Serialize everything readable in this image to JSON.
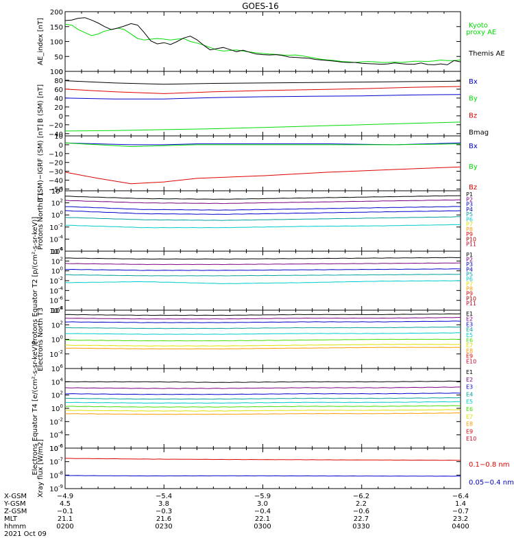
{
  "title": "GOES-16",
  "colors": {
    "black": "#000000",
    "green": "#00dd00",
    "red": "#dd0000",
    "blue": "#0000cc",
    "navy": "#00008b",
    "purple": "#7a0080",
    "cyan": "#00cccc",
    "teal": "#00a0a0",
    "lime": "#44dd00",
    "yellow": "#e0e000",
    "orange": "#ff9900",
    "darkred": "#b00000",
    "crimson": "#cc0022"
  },
  "chart_data": [
    {
      "type": "line",
      "ylabel": "AE_index [nT]",
      "ylim": [
        0,
        200
      ],
      "yticks": [
        "200",
        "150",
        "100",
        "50",
        "0"
      ],
      "legend": [
        "Kyoto proxy AE",
        "Themis AE"
      ],
      "series": [
        {
          "name": "Kyoto proxy AE",
          "color": "#00dd00",
          "x": [
            0,
            2,
            4,
            6,
            8,
            10,
            12,
            14,
            16,
            18,
            20,
            22,
            24,
            26,
            28,
            30,
            32,
            34,
            36,
            38,
            40,
            42,
            44,
            46,
            48,
            50,
            52,
            54,
            56,
            58,
            60,
            62,
            64,
            66,
            68,
            70,
            72,
            74,
            76,
            78,
            80,
            82,
            84,
            86,
            88,
            90,
            92,
            94,
            96,
            98,
            100,
            102,
            104,
            106,
            108,
            110,
            112,
            114,
            116,
            118,
            120
          ],
          "y": [
            158,
            155,
            140,
            130,
            120,
            125,
            135,
            140,
            145,
            140,
            125,
            110,
            105,
            108,
            110,
            108,
            105,
            108,
            110,
            100,
            95,
            88,
            80,
            72,
            68,
            70,
            72,
            68,
            65,
            62,
            60,
            58,
            57,
            55,
            54,
            55,
            52,
            48,
            44,
            40,
            38,
            36,
            33,
            32,
            30,
            32,
            33,
            32,
            30,
            30,
            31,
            30,
            32,
            34,
            34,
            33,
            35,
            38,
            36,
            36,
            38
          ]
        },
        {
          "name": "Themis AE",
          "color": "#000000",
          "x": [
            0,
            2,
            4,
            6,
            8,
            10,
            12,
            14,
            16,
            18,
            20,
            22,
            24,
            26,
            28,
            30,
            32,
            34,
            36,
            38,
            40,
            42,
            44,
            46,
            48,
            50,
            52,
            54,
            56,
            58,
            60,
            62,
            64,
            66,
            68,
            70,
            72,
            74,
            76,
            78,
            80,
            82,
            84,
            86,
            88,
            90,
            92,
            94,
            96,
            98,
            100,
            102,
            104,
            106,
            108,
            110,
            112,
            114,
            116,
            118,
            120
          ],
          "y": [
            170,
            172,
            178,
            180,
            172,
            162,
            150,
            140,
            145,
            152,
            160,
            155,
            130,
            102,
            92,
            96,
            90,
            100,
            112,
            118,
            106,
            88,
            72,
            76,
            80,
            73,
            66,
            71,
            64,
            58,
            56,
            55,
            56,
            53,
            48,
            47,
            45,
            44,
            40,
            38,
            36,
            34,
            31,
            30,
            30,
            27,
            26,
            25,
            24,
            25,
            28,
            26,
            24,
            24,
            28,
            23,
            22,
            25,
            22,
            36,
            32
          ]
        }
      ]
    },
    {
      "type": "line",
      "ylabel": "B (SM) [nT]",
      "ylim": [
        -45,
        100
      ],
      "yticks": [
        "100",
        "80",
        "60",
        "40",
        "20",
        "0",
        "−20",
        "−40"
      ],
      "legend": [
        "Bx",
        "By",
        "Bz",
        "Bmag"
      ],
      "series": [
        {
          "name": "Bmag",
          "color": "#000000",
          "x": [
            0,
            15,
            30,
            45,
            60,
            75,
            90,
            105,
            120
          ],
          "y": [
            79,
            74,
            71,
            73,
            74,
            75,
            76,
            77,
            78
          ]
        },
        {
          "name": "Bz",
          "color": "#dd0000",
          "x": [
            0,
            15,
            30,
            45,
            60,
            75,
            90,
            105,
            120
          ],
          "y": [
            60,
            54,
            50,
            54,
            57,
            59,
            61,
            64,
            66
          ]
        },
        {
          "name": "Bx",
          "color": "#0000cc",
          "x": [
            0,
            15,
            30,
            45,
            60,
            75,
            90,
            105,
            120
          ],
          "y": [
            40,
            38,
            38,
            41,
            43,
            44,
            45,
            47,
            48
          ]
        },
        {
          "name": "By",
          "color": "#00dd00",
          "x": [
            0,
            15,
            30,
            45,
            60,
            75,
            90,
            105,
            120
          ],
          "y": [
            -34,
            -33,
            -31,
            -29,
            -26,
            -23,
            -20,
            -17,
            -14
          ]
        }
      ]
    },
    {
      "type": "line",
      "ylabel": "B (SM)−IGRF (SM) [nT]",
      "ylim": [
        -52,
        10
      ],
      "yticks": [
        "10",
        "0",
        "−10",
        "−20",
        "−30",
        "−40",
        "−50"
      ],
      "legend": [
        "Bx",
        "By",
        "Bz"
      ],
      "series": [
        {
          "name": "Bx",
          "color": "#0000cc",
          "x": [
            0,
            10,
            20,
            30,
            40,
            60,
            80,
            100,
            120
          ],
          "y": [
            2,
            1,
            0,
            0,
            1,
            1,
            1,
            0,
            2
          ]
        },
        {
          "name": "By",
          "color": "#00dd00",
          "x": [
            0,
            10,
            20,
            30,
            40,
            60,
            80,
            100,
            120
          ],
          "y": [
            2,
            0,
            -2,
            -1,
            0,
            0,
            0,
            0,
            1
          ]
        },
        {
          "name": "Bz",
          "color": "#dd0000",
          "x": [
            0,
            10,
            20,
            30,
            40,
            60,
            80,
            100,
            120
          ],
          "y": [
            -31,
            -38,
            -44,
            -42,
            -38,
            -35,
            -31,
            -28,
            -25
          ]
        }
      ]
    },
    {
      "type": "line",
      "log": true,
      "ylabel": "Protons North T1",
      "ylim": [
        -6,
        4
      ],
      "yticks": [
        "10^4",
        "10^2",
        "10^0",
        "10^-2",
        "10^-4",
        "10^-6"
      ],
      "legend": [
        "P1",
        "P2",
        "P3",
        "P4",
        "P5",
        "P6",
        "P7",
        "P8",
        "P9",
        "P10",
        "P11"
      ],
      "series": [
        {
          "name": "P1",
          "color": "#000000",
          "levels": [
            3.1,
            2.7,
            2.6,
            2.8,
            3.0,
            3.2
          ]
        },
        {
          "name": "P2",
          "color": "#7a0080",
          "levels": [
            2.4,
            2.0,
            1.9,
            2.1,
            2.3,
            2.5
          ]
        },
        {
          "name": "P3",
          "color": "#0000cc",
          "levels": [
            1.4,
            0.9,
            0.8,
            1.0,
            1.2,
            1.4
          ]
        },
        {
          "name": "P4",
          "color": "#0000cc",
          "levels": [
            0.7,
            0.2,
            0.1,
            0.3,
            0.5,
            0.7
          ]
        },
        {
          "name": "P5",
          "color": "#00a0a0",
          "levels": [
            -0.4,
            -0.8,
            -0.9,
            -0.7,
            -0.5,
            -0.3
          ]
        },
        {
          "name": "P6",
          "color": "#00cccc",
          "levels": [
            -1.7,
            -2.1,
            -2.1,
            -1.9,
            -1.8,
            -1.6
          ]
        }
      ]
    },
    {
      "type": "line",
      "log": true,
      "ylabel": "Protons Equator T2 [p/(cm²-s-sr-keV)]",
      "ylim": [
        -8,
        4
      ],
      "yticks": [
        "10^4",
        "10^2",
        "10^0",
        "10^-2",
        "10^-4",
        "10^-6",
        "10^-8"
      ],
      "legend": [
        "P1",
        "P2",
        "P3",
        "P4",
        "P5",
        "P6",
        "P7",
        "P8",
        "P9",
        "P10",
        "P11"
      ],
      "series": [
        {
          "name": "P1",
          "color": "#000000",
          "levels": [
            2.6,
            2.4,
            2.4,
            2.5,
            2.6,
            2.7
          ]
        },
        {
          "name": "P2",
          "color": "#7a0080",
          "levels": [
            1.5,
            1.3,
            1.3,
            1.4,
            1.5,
            1.6
          ]
        },
        {
          "name": "P3",
          "color": "#0000cc",
          "levels": [
            0.3,
            0.1,
            0.1,
            0.2,
            0.3,
            0.4
          ]
        },
        {
          "name": "P4",
          "color": "#00a0a0",
          "levels": [
            -0.8,
            -1.0,
            -1.0,
            -0.9,
            -0.8,
            -0.7
          ]
        },
        {
          "name": "P5",
          "color": "#00cccc",
          "levels": [
            -2.4,
            -2.2,
            -2.6,
            -2.4,
            -2.1,
            -2.0
          ]
        }
      ]
    },
    {
      "type": "line",
      "log": true,
      "ylabel": "Electrons North T3",
      "ylim": [
        -4,
        4
      ],
      "yticks": [
        "10^4",
        "10^2",
        "10^0",
        "10^-2"
      ],
      "legend": [
        "E1",
        "E2",
        "E3",
        "E4",
        "E5",
        "E6",
        "E7",
        "E8",
        "E9",
        "E10"
      ],
      "series": [
        {
          "name": "E1",
          "color": "#000000",
          "levels": [
            3.4,
            3.3,
            3.3,
            3.4,
            3.4,
            3.5
          ]
        },
        {
          "name": "E2",
          "color": "#7a0080",
          "levels": [
            2.9,
            2.8,
            2.8,
            2.9,
            2.9,
            3.0
          ]
        },
        {
          "name": "E3",
          "color": "#0000cc",
          "levels": [
            2.4,
            2.3,
            2.3,
            2.4,
            2.4,
            2.5
          ]
        },
        {
          "name": "E4",
          "color": "#00a0a0",
          "levels": [
            1.6,
            1.5,
            1.5,
            1.6,
            1.6,
            1.7
          ]
        },
        {
          "name": "E5",
          "color": "#00cccc",
          "levels": [
            0.8,
            0.7,
            0.7,
            0.8,
            0.8,
            0.9
          ]
        },
        {
          "name": "E6",
          "color": "#44dd00",
          "levels": [
            -0.1,
            -0.2,
            -0.2,
            -0.1,
            0.0,
            0.0
          ]
        },
        {
          "name": "E7",
          "color": "#e0e000",
          "levels": [
            -0.8,
            -0.9,
            -0.9,
            -0.8,
            -0.7,
            -0.7
          ]
        },
        {
          "name": "E8",
          "color": "#ff9900",
          "levels": [
            -1.2,
            -1.3,
            -1.3,
            -1.2,
            -1.1,
            -1.1
          ]
        }
      ]
    },
    {
      "type": "line",
      "log": true,
      "ylabel": "Electrons Equator T4 [e/(cm²-s-sr-keV)]",
      "ylim": [
        -6,
        6
      ],
      "yticks": [
        "10^6",
        "10^4",
        "10^2",
        "10^0",
        "10^-2",
        "10^-4",
        "10^-6"
      ],
      "legend": [
        "E1",
        "E2",
        "E3",
        "E4",
        "E5",
        "E6",
        "E7",
        "E8",
        "E9",
        "E10"
      ],
      "series": [
        {
          "name": "E1",
          "color": "#000000",
          "levels": [
            4.0,
            4.0,
            3.9,
            4.0,
            4.0,
            4.1
          ]
        },
        {
          "name": "E2",
          "color": "#7a0080",
          "levels": [
            3.1,
            3.0,
            3.0,
            3.1,
            3.1,
            3.2
          ]
        },
        {
          "name": "E3",
          "color": "#0000cc",
          "levels": [
            2.2,
            2.1,
            2.1,
            2.2,
            2.2,
            2.3
          ]
        },
        {
          "name": "E4",
          "color": "#00a0a0",
          "levels": [
            1.5,
            1.4,
            1.4,
            1.5,
            1.5,
            1.6
          ]
        },
        {
          "name": "E5",
          "color": "#00cccc",
          "levels": [
            0.9,
            0.8,
            0.8,
            0.9,
            0.9,
            1.0
          ]
        },
        {
          "name": "E6",
          "color": "#44dd00",
          "levels": [
            0.3,
            0.2,
            0.2,
            0.3,
            0.3,
            0.4
          ]
        },
        {
          "name": "E7",
          "color": "#e0e000",
          "levels": [
            -0.3,
            -0.4,
            -0.4,
            -0.3,
            -0.3,
            -0.2
          ]
        },
        {
          "name": "E8",
          "color": "#ff9900",
          "levels": [
            -0.8,
            -0.9,
            -0.9,
            -0.8,
            -0.8,
            -0.7
          ]
        }
      ]
    },
    {
      "type": "line",
      "log": true,
      "ylabel": "Xray flux [W/m2]",
      "ylim": [
        -9,
        -6
      ],
      "yticks": [
        "10^-6",
        "10^-7",
        "10^-8",
        "10^-9"
      ],
      "legend": [
        "0.1−0.8 nm",
        "0.05−0.4 nm"
      ],
      "series": [
        {
          "name": "0.1−0.8 nm",
          "color": "#dd0000",
          "levels": [
            -6.76,
            -6.81,
            -6.84,
            -6.86,
            -6.88,
            -6.9
          ]
        },
        {
          "name": "0.05−0.4 nm",
          "color": "#0000cc",
          "levels": [
            -8.03,
            -8.06,
            -8.05,
            -8.06,
            -8.07,
            -8.08
          ]
        }
      ]
    }
  ],
  "x_axis": {
    "row_labels": [
      "X-GSM",
      "Y-GSM",
      "Z-GSM",
      "MLT",
      "hhmm"
    ],
    "date": "2021 Oct 09",
    "columns": [
      {
        "values": [
          "−4.9",
          "4.5",
          "−0.1",
          "21.1",
          "0200"
        ]
      },
      {
        "values": [
          "−5.4",
          "3.8",
          "−0.3",
          "21.6",
          "0230"
        ]
      },
      {
        "values": [
          "−5.9",
          "3.0",
          "−0.4",
          "22.1",
          "0300"
        ]
      },
      {
        "values": [
          "−6.2",
          "2.2",
          "−0.6",
          "22.7",
          "0330"
        ]
      },
      {
        "values": [
          "−6.4",
          "1.4",
          "−0.7",
          "23.2",
          "0400"
        ]
      }
    ]
  }
}
